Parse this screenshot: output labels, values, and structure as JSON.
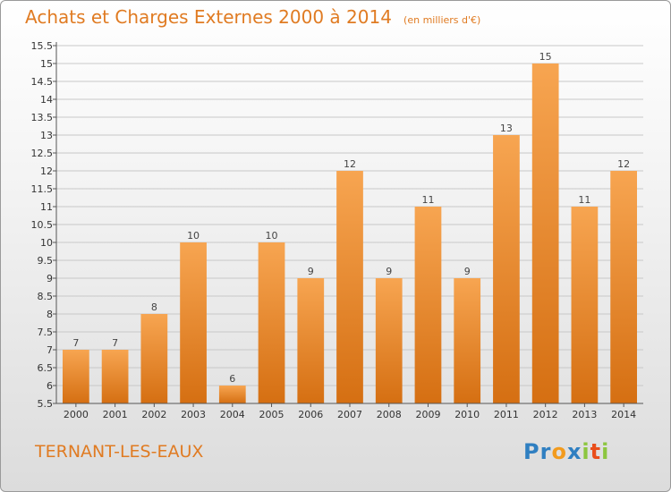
{
  "title": {
    "main": "Achats et Charges Externes 2000 à 2014",
    "unit": "(en milliers d'€)"
  },
  "location": "TERNANT-LES-EAUX",
  "logo": {
    "text": "Proxiti",
    "letters": [
      {
        "ch": "P",
        "color": "#2f7fc1"
      },
      {
        "ch": "r",
        "color": "#2f7fc1"
      },
      {
        "ch": "o",
        "color": "#f29b1e"
      },
      {
        "ch": "x",
        "color": "#2f7fc1"
      },
      {
        "ch": "i",
        "color": "#8cc63f"
      },
      {
        "ch": "t",
        "color": "#e94e1b"
      },
      {
        "ch": "i",
        "color": "#8cc63f"
      }
    ]
  },
  "colors": {
    "bar_top": "#f7a551",
    "bar_bottom": "#d56f12",
    "accent": "#e07b22",
    "axis": "#555555",
    "grid": "#c8c8c8"
  },
  "chart_data": {
    "type": "bar",
    "categories": [
      "2000",
      "2001",
      "2002",
      "2003",
      "2004",
      "2005",
      "2006",
      "2007",
      "2008",
      "2009",
      "2010",
      "2011",
      "2012",
      "2013",
      "2014"
    ],
    "values": [
      7,
      7,
      8,
      10,
      6,
      10,
      9,
      12,
      9,
      11,
      9,
      13,
      15,
      11,
      12
    ],
    "ylim": [
      5.5,
      15.5
    ],
    "yticks": [
      "5.5",
      "6",
      "6.5",
      "7",
      "7.5",
      "8",
      "8.5",
      "9",
      "9.5",
      "10",
      "10.5",
      "11",
      "11.5",
      "12",
      "12.5",
      "13",
      "13.5",
      "14",
      "14.5",
      "15",
      "15.5"
    ],
    "grid": "horizontal",
    "legend": "none"
  }
}
